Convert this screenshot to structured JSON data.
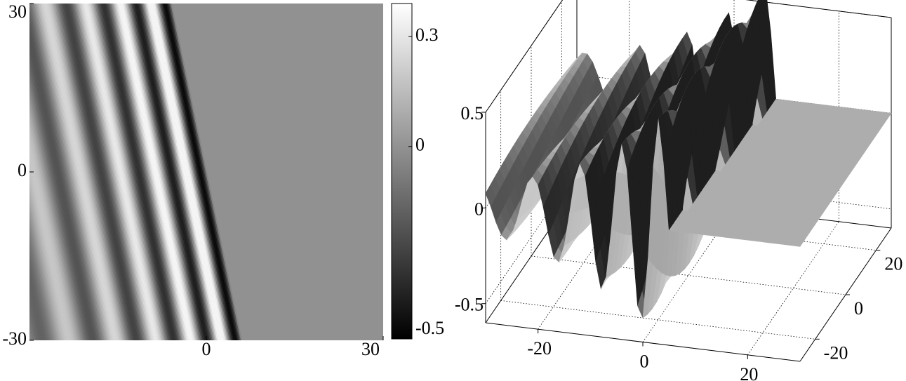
{
  "chart_data": [
    {
      "type": "heatmap",
      "colormap": "gray",
      "xlim": [
        -30,
        30
      ],
      "ylim": [
        -30,
        30
      ],
      "xticks": [
        0,
        30
      ],
      "yticks": [
        -30,
        0,
        30
      ],
      "colorbar": {
        "clim": [
          -0.525,
          0.39
        ],
        "ticks": [
          -0.5,
          0,
          0.3
        ]
      }
    },
    {
      "type": "surface",
      "colormap": "gray",
      "xlim": [
        -30,
        30
      ],
      "ylim": [
        -30,
        30
      ],
      "zlim": [
        -0.6,
        0.5
      ],
      "xticks": [
        -20,
        0,
        20
      ],
      "yticks": [
        -20,
        0,
        20
      ],
      "zticks": [
        -0.5,
        0,
        0.5
      ],
      "grid": true
    }
  ]
}
